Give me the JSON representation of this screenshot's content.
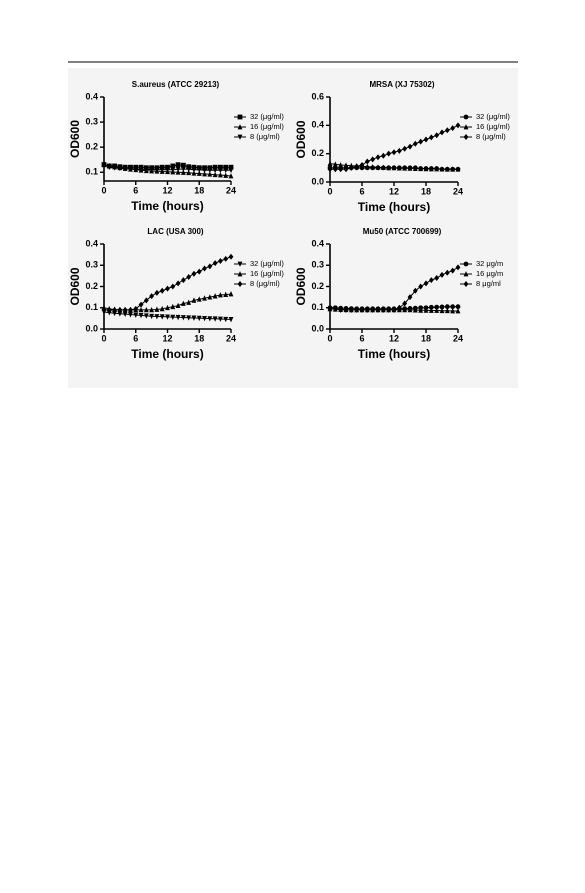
{
  "chart_data": [
    {
      "type": "line",
      "title": "S.aureus (ATCC 29213)",
      "xlabel": "Time (hours)",
      "ylabel": "OD600",
      "x": [
        0,
        1,
        2,
        3,
        4,
        5,
        6,
        7,
        8,
        9,
        10,
        11,
        12,
        13,
        14,
        15,
        16,
        17,
        18,
        19,
        20,
        21,
        22,
        23,
        24
      ],
      "xlim": [
        0,
        24
      ],
      "xticks": [
        0,
        6,
        12,
        18,
        24
      ],
      "ylim": [
        0.065,
        0.4
      ],
      "yticks": [
        0.1,
        0.2,
        0.3,
        0.4
      ],
      "series": [
        {
          "name": "32 (μg/ml)",
          "color": "#000000",
          "marker": "square",
          "values": [
            0.13,
            0.125,
            0.125,
            0.122,
            0.12,
            0.12,
            0.12,
            0.12,
            0.118,
            0.118,
            0.118,
            0.12,
            0.12,
            0.125,
            0.13,
            0.128,
            0.122,
            0.12,
            0.118,
            0.118,
            0.118,
            0.12,
            0.12,
            0.12,
            0.12
          ]
        },
        {
          "name": "16 (μg/ml)",
          "color": "#000000",
          "marker": "triangle",
          "values": [
            0.13,
            0.125,
            0.121,
            0.118,
            0.115,
            0.112,
            0.11,
            0.108,
            0.106,
            0.105,
            0.104,
            0.103,
            0.102,
            0.101,
            0.1,
            0.099,
            0.098,
            0.096,
            0.095,
            0.093,
            0.092,
            0.09,
            0.089,
            0.087,
            0.085
          ]
        },
        {
          "name": "8 (μg/ml)",
          "color": "#000000",
          "marker": "triangle-down",
          "values": [
            0.13,
            0.12,
            0.118,
            0.116,
            0.115,
            0.113,
            0.112,
            0.112,
            0.111,
            0.111,
            0.11,
            0.11,
            0.11,
            0.11,
            0.112,
            0.113,
            0.112,
            0.11,
            0.11,
            0.108,
            0.108,
            0.108,
            0.108,
            0.108,
            0.108
          ]
        }
      ]
    },
    {
      "type": "line",
      "title": "MRSA (XJ 75302)",
      "xlabel": "Time (hours)",
      "ylabel": "OD600",
      "x": [
        0,
        1,
        2,
        3,
        4,
        5,
        6,
        7,
        8,
        9,
        10,
        11,
        12,
        13,
        14,
        15,
        16,
        17,
        18,
        19,
        20,
        21,
        22,
        23,
        24
      ],
      "xlim": [
        0,
        24
      ],
      "xticks": [
        0,
        6,
        12,
        18,
        24
      ],
      "ylim": [
        0,
        0.6
      ],
      "yticks": [
        {
          "value": 0,
          "label": "0.0"
        },
        0.2,
        0.4,
        0.6
      ],
      "series": [
        {
          "name": "32 (μg/ml)",
          "color": "#000000",
          "marker": "circle",
          "values": [
            0.1,
            0.1,
            0.1,
            0.1,
            0.1,
            0.1,
            0.1,
            0.1,
            0.1,
            0.1,
            0.1,
            0.1,
            0.1,
            0.1,
            0.1,
            0.1,
            0.1,
            0.095,
            0.095,
            0.095,
            0.095,
            0.09,
            0.09,
            0.09,
            0.09
          ]
        },
        {
          "name": "16 (μg/ml)",
          "color": "#000000",
          "marker": "triangle",
          "values": [
            0.13,
            0.125,
            0.12,
            0.118,
            0.115,
            0.113,
            0.11,
            0.108,
            0.106,
            0.104,
            0.102,
            0.1,
            0.1,
            0.098,
            0.097,
            0.096,
            0.095,
            0.094,
            0.093,
            0.092,
            0.092,
            0.091,
            0.09,
            0.09,
            0.09
          ]
        },
        {
          "name": "8 (μg/ml)",
          "color": "#000000",
          "marker": "diamond",
          "values": [
            0.09,
            0.09,
            0.09,
            0.09,
            0.1,
            0.11,
            0.12,
            0.145,
            0.16,
            0.175,
            0.185,
            0.2,
            0.21,
            0.22,
            0.235,
            0.25,
            0.27,
            0.285,
            0.3,
            0.315,
            0.33,
            0.35,
            0.365,
            0.38,
            0.4
          ]
        }
      ]
    },
    {
      "type": "line",
      "title": "LAC (USA 300)",
      "xlabel": "Time (hours)",
      "ylabel": "OD600",
      "x": [
        0,
        1,
        2,
        3,
        4,
        5,
        6,
        7,
        8,
        9,
        10,
        11,
        12,
        13,
        14,
        15,
        16,
        17,
        18,
        19,
        20,
        21,
        22,
        23,
        24
      ],
      "xlim": [
        0,
        24
      ],
      "xticks": [
        0,
        6,
        12,
        18,
        24
      ],
      "ylim": [
        0,
        0.4
      ],
      "yticks": [
        {
          "value": 0,
          "label": "0.0"
        },
        0.1,
        0.2,
        0.3,
        0.4
      ],
      "series": [
        {
          "name": "32 (μg/ml)",
          "color": "#000000",
          "marker": "triangle-down",
          "values": [
            0.08,
            0.077,
            0.074,
            0.072,
            0.07,
            0.068,
            0.066,
            0.064,
            0.062,
            0.06,
            0.059,
            0.058,
            0.057,
            0.056,
            0.055,
            0.054,
            0.053,
            0.052,
            0.051,
            0.05,
            0.049,
            0.048,
            0.047,
            0.046,
            0.045
          ]
        },
        {
          "name": "16 (μg/ml)",
          "color": "#000000",
          "marker": "triangle",
          "values": [
            0.1,
            0.095,
            0.092,
            0.09,
            0.09,
            0.09,
            0.09,
            0.09,
            0.09,
            0.09,
            0.092,
            0.095,
            0.1,
            0.105,
            0.11,
            0.12,
            0.125,
            0.135,
            0.14,
            0.145,
            0.15,
            0.155,
            0.16,
            0.162,
            0.165
          ]
        },
        {
          "name": "8 (μg/ml)",
          "color": "#000000",
          "marker": "diamond",
          "values": [
            0.09,
            0.09,
            0.09,
            0.09,
            0.09,
            0.09,
            0.095,
            0.115,
            0.135,
            0.155,
            0.17,
            0.18,
            0.19,
            0.2,
            0.215,
            0.23,
            0.245,
            0.26,
            0.27,
            0.285,
            0.295,
            0.31,
            0.32,
            0.33,
            0.34
          ]
        }
      ]
    },
    {
      "type": "line",
      "title": "Mu50 (ATCC 700699)",
      "xlabel": "Time (hours)",
      "ylabel": "OD600",
      "x": [
        0,
        1,
        2,
        3,
        4,
        5,
        6,
        7,
        8,
        9,
        10,
        11,
        12,
        13,
        14,
        15,
        16,
        17,
        18,
        19,
        20,
        21,
        22,
        23,
        24
      ],
      "xlim": [
        0,
        24
      ],
      "xticks": [
        0,
        6,
        12,
        18,
        24
      ],
      "ylim": [
        0,
        0.4
      ],
      "yticks": [
        {
          "value": 0,
          "label": "0.0"
        },
        0.1,
        0.2,
        0.3,
        0.4
      ],
      "series": [
        {
          "name": "32 μg/m",
          "color": "#000000",
          "marker": "circle",
          "values": [
            0.1,
            0.1,
            0.098,
            0.097,
            0.096,
            0.095,
            0.095,
            0.095,
            0.095,
            0.095,
            0.095,
            0.095,
            0.095,
            0.095,
            0.096,
            0.097,
            0.098,
            0.1,
            0.1,
            0.102,
            0.103,
            0.104,
            0.105,
            0.105,
            0.105
          ]
        },
        {
          "name": "16 μg/m",
          "color": "#000000",
          "marker": "triangle",
          "values": [
            0.095,
            0.093,
            0.092,
            0.091,
            0.09,
            0.09,
            0.09,
            0.09,
            0.09,
            0.09,
            0.09,
            0.09,
            0.09,
            0.09,
            0.09,
            0.09,
            0.089,
            0.088,
            0.088,
            0.087,
            0.087,
            0.086,
            0.086,
            0.085,
            0.085
          ]
        },
        {
          "name": "8 μg/ml",
          "color": "#000000",
          "marker": "diamond",
          "values": [
            0.095,
            0.095,
            0.09,
            0.09,
            0.09,
            0.09,
            0.09,
            0.09,
            0.09,
            0.09,
            0.09,
            0.09,
            0.09,
            0.1,
            0.12,
            0.15,
            0.18,
            0.2,
            0.215,
            0.23,
            0.24,
            0.255,
            0.265,
            0.275,
            0.29
          ]
        }
      ]
    }
  ]
}
